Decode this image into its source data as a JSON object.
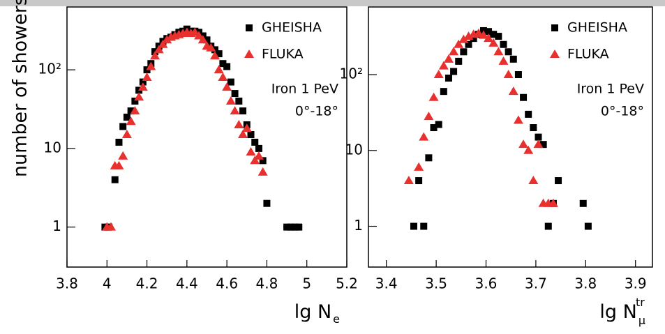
{
  "chart_data": [
    {
      "type": "scatter",
      "y_label": "number of showers",
      "x_label": "lg N",
      "x_label_sub": "e",
      "log_y": true,
      "annotations": [
        "Iron 1 PeV",
        "0°-18°"
      ],
      "xlim": [
        3.8,
        5.2
      ],
      "xticks": [
        3.8,
        4,
        4.2,
        4.4,
        4.6,
        4.8,
        5,
        5.2
      ],
      "ylim": [
        0.31,
        630
      ],
      "yticks": [
        1,
        10,
        {
          "value": 100,
          "label": "10²"
        }
      ],
      "series": [
        {
          "name": "GHEISHA",
          "color": "#000000",
          "marker": "square",
          "x": [
            3.99,
            4.01,
            4.04,
            4.06,
            4.08,
            4.1,
            4.12,
            4.14,
            4.16,
            4.18,
            4.2,
            4.22,
            4.24,
            4.26,
            4.28,
            4.3,
            4.32,
            4.34,
            4.36,
            4.38,
            4.4,
            4.42,
            4.44,
            4.46,
            4.48,
            4.5,
            4.52,
            4.54,
            4.56,
            4.58,
            4.6,
            4.62,
            4.64,
            4.66,
            4.68,
            4.7,
            4.72,
            4.74,
            4.76,
            4.78,
            4.8,
            4.9,
            4.92,
            4.94,
            4.96
          ],
          "values": [
            1,
            1,
            4,
            12,
            19,
            25,
            30,
            40,
            55,
            70,
            100,
            120,
            170,
            200,
            230,
            250,
            260,
            280,
            300,
            310,
            330,
            310,
            310,
            300,
            270,
            240,
            200,
            180,
            160,
            120,
            110,
            70,
            50,
            40,
            30,
            20,
            15,
            12,
            10,
            7,
            2,
            1,
            1,
            1,
            1
          ]
        },
        {
          "name": "FLUKA",
          "color": "#e8302f",
          "marker": "triangle",
          "x": [
            4.0,
            4.02,
            4.04,
            4.06,
            4.08,
            4.1,
            4.12,
            4.14,
            4.16,
            4.18,
            4.2,
            4.22,
            4.24,
            4.26,
            4.28,
            4.3,
            4.32,
            4.34,
            4.36,
            4.38,
            4.4,
            4.42,
            4.44,
            4.46,
            4.48,
            4.5,
            4.52,
            4.54,
            4.56,
            4.58,
            4.6,
            4.62,
            4.64,
            4.66,
            4.68,
            4.7,
            4.72,
            4.74,
            4.76,
            4.78
          ],
          "values": [
            1,
            1,
            6,
            6,
            8,
            15,
            22,
            30,
            45,
            60,
            80,
            110,
            150,
            180,
            210,
            240,
            260,
            270,
            280,
            290,
            300,
            290,
            300,
            270,
            240,
            200,
            190,
            150,
            100,
            80,
            60,
            40,
            30,
            20,
            15,
            18,
            9,
            7,
            8,
            5
          ]
        }
      ]
    },
    {
      "type": "scatter",
      "x_label": "lg N",
      "x_label_sub": "μ",
      "x_label_sup": "tr",
      "log_y": true,
      "annotations": [
        "Iron 1 PeV",
        "0°-18°"
      ],
      "xlim": [
        3.364,
        3.934
      ],
      "xticks": [
        3.4,
        3.5,
        3.6,
        3.7,
        3.8,
        3.9
      ],
      "ylim": [
        0.29,
        780
      ],
      "yticks": [
        1,
        10,
        {
          "value": 100,
          "label": "10²"
        }
      ],
      "series": [
        {
          "name": "GHEISHA",
          "color": "#000000",
          "marker": "square",
          "x": [
            3.455,
            3.465,
            3.475,
            3.485,
            3.495,
            3.505,
            3.515,
            3.525,
            3.535,
            3.545,
            3.555,
            3.565,
            3.575,
            3.585,
            3.595,
            3.605,
            3.615,
            3.625,
            3.635,
            3.645,
            3.655,
            3.665,
            3.675,
            3.685,
            3.695,
            3.705,
            3.715,
            3.725,
            3.735,
            3.745,
            3.795,
            3.805
          ],
          "values": [
            1,
            4,
            1,
            8,
            20,
            22,
            60,
            90,
            110,
            150,
            200,
            250,
            300,
            340,
            380,
            370,
            340,
            320,
            250,
            200,
            160,
            100,
            50,
            30,
            20,
            15,
            12,
            1,
            2,
            4,
            2,
            1
          ]
        },
        {
          "name": "FLUKA",
          "color": "#e8302f",
          "marker": "triangle",
          "x": [
            3.445,
            3.465,
            3.475,
            3.485,
            3.495,
            3.505,
            3.515,
            3.525,
            3.535,
            3.545,
            3.555,
            3.565,
            3.575,
            3.585,
            3.595,
            3.605,
            3.615,
            3.625,
            3.635,
            3.645,
            3.655,
            3.665,
            3.675,
            3.685,
            3.695,
            3.705,
            3.715,
            3.725,
            3.735
          ],
          "values": [
            4,
            6,
            15,
            28,
            50,
            100,
            130,
            160,
            200,
            250,
            290,
            320,
            340,
            350,
            330,
            300,
            260,
            200,
            150,
            100,
            60,
            25,
            12,
            10,
            4,
            12,
            2,
            2,
            2
          ]
        }
      ]
    }
  ]
}
